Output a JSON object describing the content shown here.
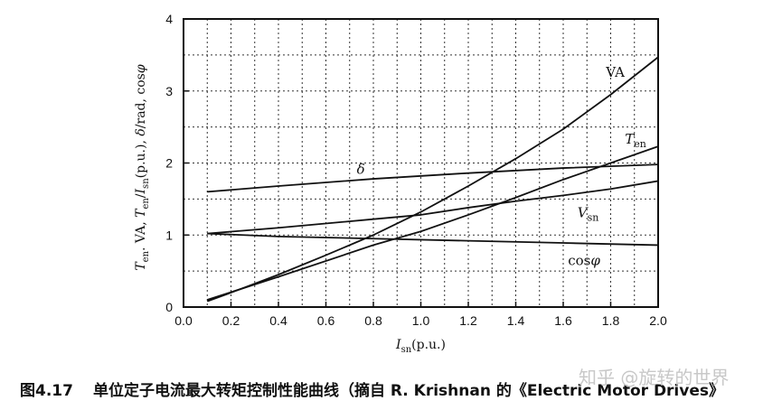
{
  "chart_data": {
    "type": "line",
    "title": "",
    "xlabel": "I_sn(p.u.)",
    "xlabel_parts": {
      "main": "I",
      "sub": "sn",
      "suffix": "(p.u.)"
    },
    "ylabel": "T_en . VA, T_en/I_sn(p.u.), δ/rad, cos φ",
    "ylabel_parts": [
      "T",
      "en",
      ". VA, ",
      "T",
      "en",
      "/",
      "I",
      "sn",
      "(p.u.), ",
      "δ",
      "/rad, cos",
      "φ"
    ],
    "xlim": [
      0.0,
      2.0
    ],
    "ylim": [
      0,
      4
    ],
    "xticks": [
      "0.0",
      "0.2",
      "0.4",
      "0.6",
      "0.8",
      "1.0",
      "1.2",
      "1.4",
      "1.6",
      "1.8",
      "2.0"
    ],
    "yticks": [
      "0",
      "1",
      "2",
      "3",
      "4"
    ],
    "grid": true,
    "series": [
      {
        "name": "VA",
        "label_main": "VA",
        "label_sub": "",
        "x": [
          0.1,
          0.2,
          0.4,
          0.6,
          0.8,
          1.0,
          1.2,
          1.4,
          1.6,
          1.8,
          2.0
        ],
        "y": [
          0.08,
          0.2,
          0.45,
          0.72,
          1.0,
          1.32,
          1.68,
          2.06,
          2.47,
          2.95,
          3.47
        ]
      },
      {
        "name": "T_en",
        "label_main": "T",
        "label_sub": "en",
        "x": [
          0.1,
          0.4,
          0.8,
          1.0,
          1.2,
          1.4,
          1.6,
          1.8,
          2.0
        ],
        "y": [
          0.1,
          0.42,
          0.86,
          1.05,
          1.28,
          1.52,
          1.77,
          2.0,
          2.23
        ]
      },
      {
        "name": "δ",
        "label_main": "δ",
        "label_sub": "",
        "x": [
          0.1,
          0.4,
          0.8,
          1.2,
          1.6,
          2.0
        ],
        "y": [
          1.6,
          1.68,
          1.78,
          1.86,
          1.93,
          1.98
        ]
      },
      {
        "name": "V_sn",
        "label_main": "V",
        "label_sub": "sn",
        "x": [
          0.1,
          0.4,
          0.8,
          1.0,
          1.2,
          1.4,
          1.6,
          1.8,
          2.0
        ],
        "y": [
          1.02,
          1.1,
          1.22,
          1.28,
          1.38,
          1.47,
          1.55,
          1.64,
          1.75
        ]
      },
      {
        "name": "cos φ",
        "label_main": "cos",
        "label_sub": "",
        "label_suffix": "φ",
        "x": [
          0.1,
          0.4,
          0.8,
          1.2,
          1.6,
          2.0
        ],
        "y": [
          1.02,
          0.98,
          0.95,
          0.92,
          0.89,
          0.86
        ]
      }
    ]
  },
  "caption": {
    "figure_number": "图4.17",
    "text": "单位定子电流最大转矩控制性能曲线（摘自 R. Krishnan 的《Electric Motor Drives》"
  },
  "watermark": "知乎 @旋转的世界"
}
